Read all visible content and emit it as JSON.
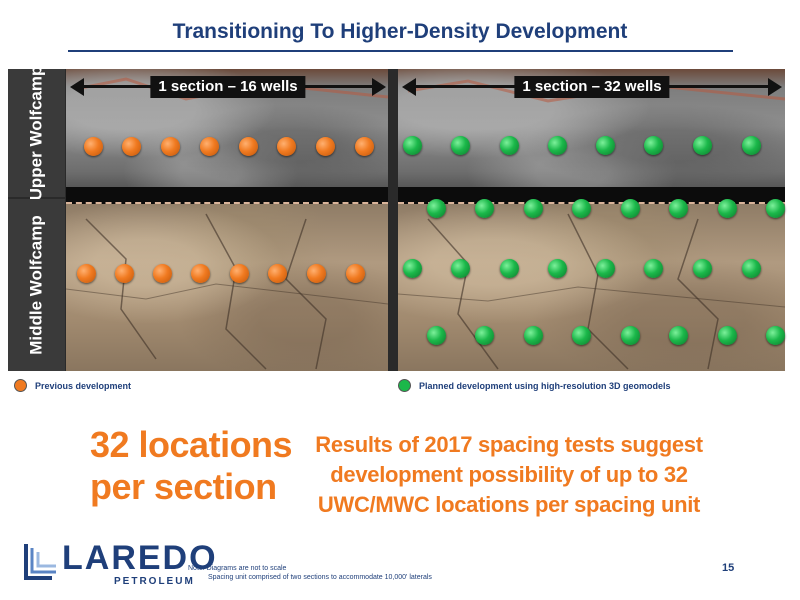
{
  "title": "Transitioning To Higher-Density Development",
  "layers": {
    "upper": "Upper Wolfcamp",
    "middle": "Middle Wolfcamp"
  },
  "left_panel": {
    "label": "1 section – 16 wells"
  },
  "right_panel": {
    "label": "1 section – 32 wells"
  },
  "legend": {
    "previous": "Previous development",
    "planned": "Planned development using high-resolution 3D geomodels"
  },
  "big_text": {
    "line1": "32 locations",
    "line2": "per section"
  },
  "results": {
    "line1": "Results of 2017 spacing tests suggest",
    "line2": "development possibility of up to 32",
    "line3": "UWC/MWC locations per spacing unit"
  },
  "logo": {
    "word": "LAREDO",
    "sub": "PETROLEUM"
  },
  "note": {
    "line1": "Note: Diagrams are not to scale",
    "line2": "Spacing unit comprised of two sections to accommodate 10,000' laterals"
  },
  "page_number": "15",
  "colors": {
    "orange": "#f07a20",
    "green": "#1bb84a",
    "navy": "#1f3f7a"
  }
}
